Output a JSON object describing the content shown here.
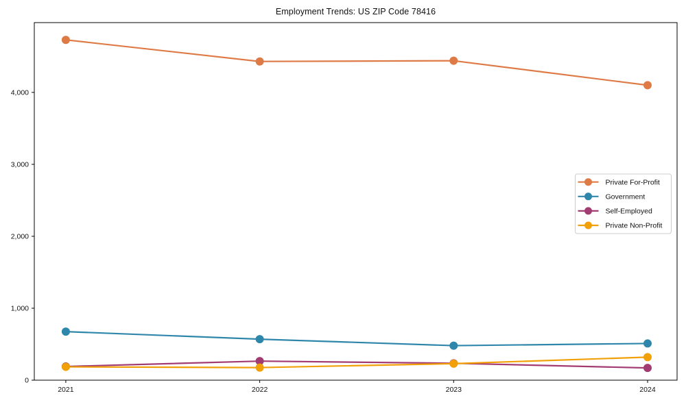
{
  "chart_data": {
    "type": "line",
    "title": "Employment Trends: US ZIP Code 78416",
    "x": [
      2021,
      2022,
      2023,
      2024
    ],
    "xtick_labels": [
      "2021",
      "2022",
      "2023",
      "2024"
    ],
    "series": [
      {
        "name": "Private For-Profit",
        "color": "#DE7A46",
        "values": [
          4730,
          4430,
          4440,
          4100
        ]
      },
      {
        "name": "Government",
        "color": "#2F86AB",
        "values": [
          675,
          570,
          480,
          510
        ]
      },
      {
        "name": "Self-Employed",
        "color": "#A23B72",
        "values": [
          190,
          265,
          235,
          170
        ]
      },
      {
        "name": "Private Non-Profit",
        "color": "#F2A007",
        "values": [
          185,
          175,
          230,
          320
        ]
      }
    ],
    "xlabel": "",
    "ylabel": "",
    "ylim": [
      0,
      4970
    ],
    "yticks": [
      0,
      1000,
      2000,
      3000,
      4000
    ],
    "ytick_labels": [
      "0",
      "1,000",
      "2,000",
      "3,000",
      "4,000"
    ],
    "grid": false,
    "legend_position": "center right",
    "axes_color": "#000000",
    "background_color": "#ffffff"
  }
}
